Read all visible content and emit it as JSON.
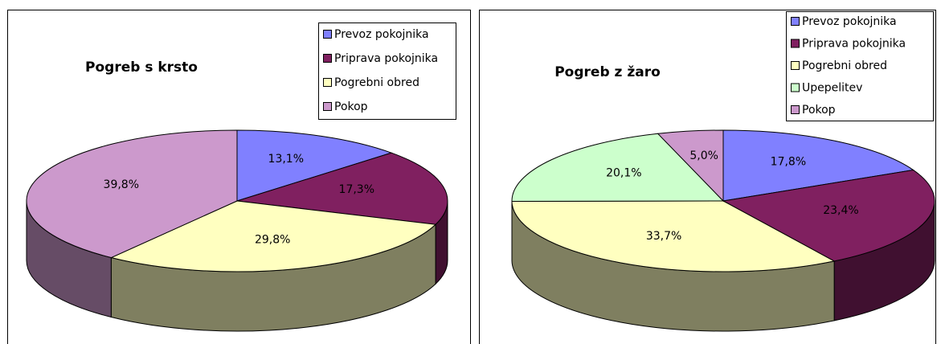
{
  "chart_data": [
    {
      "type": "pie3d",
      "title": "Pogreb s krsto",
      "categories": [
        "Prevoz pokojnika",
        "Priprava pokojnika",
        "Pogrebni obred",
        "Pokop"
      ],
      "values": [
        13.1,
        17.3,
        29.8,
        39.8
      ],
      "value_labels": [
        "13,1%",
        "17,3%",
        "29,8%",
        "39,8%"
      ],
      "colors": [
        "#8080ff",
        "#802060",
        "#ffffc0",
        "#cc99cc"
      ]
    },
    {
      "type": "pie3d",
      "title": "Pogreb z žaro",
      "categories": [
        "Prevoz pokojnika",
        "Priprava pokojnika",
        "Pogrebni obred",
        "Upepelitev",
        "Pokop"
      ],
      "values": [
        17.8,
        23.4,
        33.7,
        20.1,
        5.0
      ],
      "value_labels": [
        "17,8%",
        "23,4%",
        "33,7%",
        "20,1%",
        "5,0%"
      ],
      "colors": [
        "#8080ff",
        "#802060",
        "#ffffc0",
        "#ccffcc",
        "#cc99cc"
      ]
    }
  ]
}
